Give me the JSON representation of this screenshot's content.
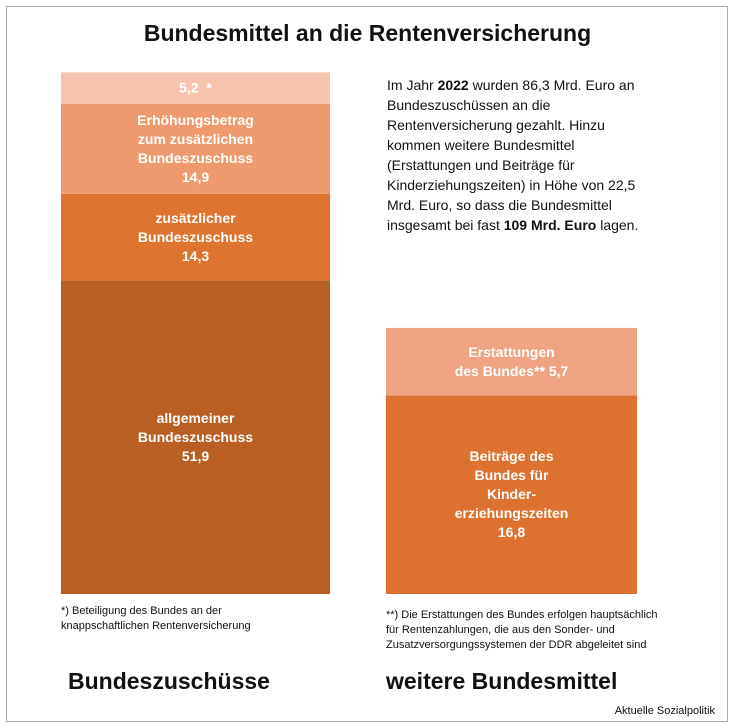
{
  "title": "Bundesmittel an die Rentenversicherung",
  "annotation": {
    "parts": [
      "Im Jahr ",
      "2022",
      " wurden 86,3 Mrd. Euro an Bundeszuschüssen an die Rentenversicherung gezahlt. Hinzu kommen weitere Bundesmittel (Erstattungen und Beiträge für Kinderziehungszeiten) in Höhe von 22,5 Mrd. Euro, so dass die Bundesmittel insgesamt bei fast ",
      "109 Mrd. Euro",
      " lagen."
    ]
  },
  "source": "Aktuelle Sozialpolitik",
  "chart_data": [
    {
      "type": "bar",
      "categories": [
        "Bundeszuschüsse"
      ],
      "ylim": [
        0,
        90
      ],
      "footnote": "*) Beteiligung des Bundes an der\nknappschaftlichen Rentenversicherung",
      "series": [
        {
          "name": "allgemeiner\nBundeszuschuss",
          "color": "#ba5f24",
          "values": [
            51.9
          ],
          "value_labels": [
            "51,9"
          ],
          "value_position": "below"
        },
        {
          "name": "zusätzlicher\nBundeszuschuss",
          "color": "#dd7430",
          "values": [
            14.3
          ],
          "value_labels": [
            "14,3"
          ],
          "value_position": "below"
        },
        {
          "name": "Erhöhungsbetrag\nzum zusätzlichen\nBundeszuschuss",
          "color": "#ef9a6e",
          "values": [
            14.9
          ],
          "value_labels": [
            "14,9"
          ],
          "value_position": "below"
        },
        {
          "name": "*",
          "color": "#f5c3ae",
          "values": [
            5.2
          ],
          "value_labels": [
            "5,2"
          ],
          "value_position": "before"
        }
      ]
    },
    {
      "type": "bar",
      "categories": [
        "weitere Bundesmittel"
      ],
      "ylim": [
        0,
        46
      ],
      "footnote": "**) Die Erstattungen des Bundes erfolgen hauptsächlich\nfür Rentenzahlungen, die aus den Sonder- und\nZusatzversorgungssystemen der DDR abgeleitet sind",
      "series": [
        {
          "name": "Beiträge des\nBundes für\nKinder-\nerziehungszeiten",
          "color": "#dd7230",
          "values": [
            16.8
          ],
          "value_labels": [
            "16,8"
          ],
          "value_position": "below"
        },
        {
          "name": "Erstattungen\ndes Bundes**",
          "color": "#f0a383",
          "values": [
            5.7
          ],
          "value_labels": [
            "5,7"
          ],
          "value_position": "after"
        }
      ]
    }
  ]
}
